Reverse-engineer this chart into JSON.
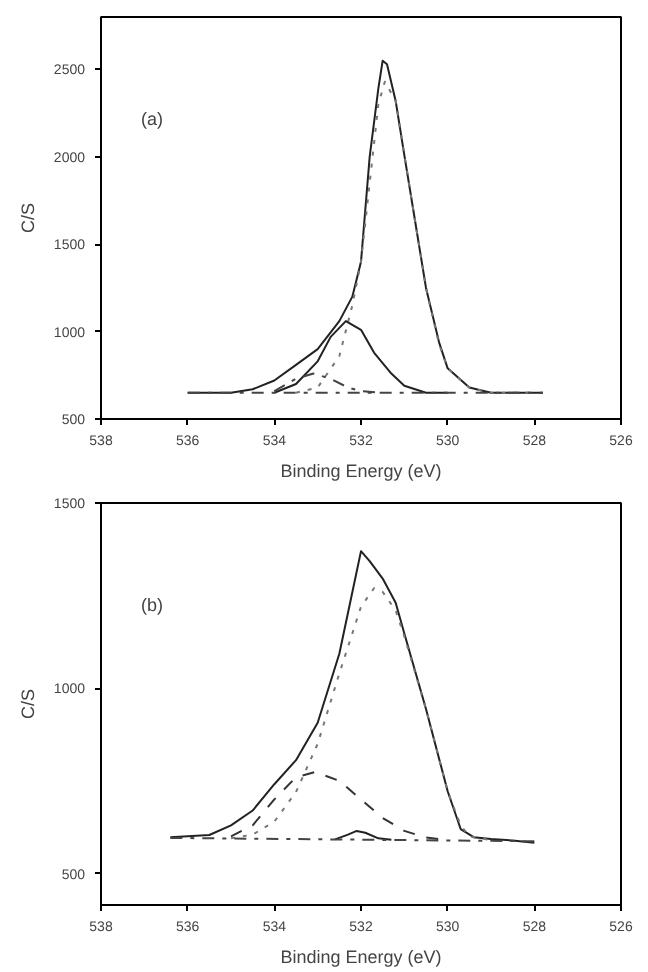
{
  "chart_data": [
    {
      "type": "line",
      "xlabel": "Binding Energy (eV)",
      "ylabel": "C/S",
      "annotations": [
        "(a)"
      ],
      "xlim": [
        538,
        526
      ],
      "ylim": [
        500,
        2800
      ],
      "xticks": [
        538,
        536,
        534,
        532,
        530,
        528,
        526
      ],
      "yticks": [
        500,
        1000,
        1500,
        2000,
        2500
      ],
      "grid": false,
      "series": [
        {
          "color": "#222222",
          "line_style": "solid",
          "x": [
            536,
            535,
            534.5,
            534,
            533.5,
            533,
            532.5,
            532.2,
            532,
            531.8,
            531.6,
            531.5,
            531.4,
            531.2,
            531,
            530.75,
            530.5,
            530.2,
            530,
            529.5,
            529,
            528.5,
            527.8
          ],
          "values": [
            650,
            650,
            670,
            720,
            810,
            900,
            1060,
            1200,
            1400,
            2000,
            2390,
            2550,
            2530,
            2320,
            2010,
            1630,
            1250,
            940,
            790,
            680,
            650,
            650,
            650
          ]
        },
        {
          "color": "#777777",
          "line_style": "dotted",
          "x": [
            533.5,
            533,
            532.5,
            532.2,
            532,
            531.8,
            531.6,
            531.45,
            531.2,
            531,
            530.75,
            530.5,
            530.2,
            530,
            529.5,
            529,
            528
          ],
          "values": [
            650,
            680,
            860,
            1150,
            1400,
            1850,
            2300,
            2430,
            2320,
            2010,
            1630,
            1250,
            930,
            790,
            680,
            650,
            650
          ]
        },
        {
          "color": "#222222",
          "line_style": "solid",
          "x": [
            534,
            533.5,
            533,
            532.7,
            532.35,
            532,
            531.7,
            531.3,
            531,
            530.5,
            530
          ],
          "values": [
            650,
            700,
            830,
            970,
            1060,
            1010,
            880,
            760,
            690,
            650,
            650
          ]
        },
        {
          "color": "#444444",
          "line_style": "dashdot",
          "x": [
            534,
            533.5,
            533.1,
            532.7,
            532.3,
            532,
            531.5
          ],
          "values": [
            660,
            730,
            760,
            730,
            680,
            660,
            650
          ]
        },
        {
          "color": "#444444",
          "line_style": "dashdot",
          "x": [
            536,
            527.8
          ],
          "values": [
            650,
            650
          ]
        }
      ]
    },
    {
      "type": "line",
      "xlabel": "Binding Energy (eV)",
      "ylabel": "C/S",
      "annotations": [
        "(b)"
      ],
      "xlim": [
        538,
        526
      ],
      "ylim": [
        415,
        1500
      ],
      "xticks": [
        538,
        536,
        534,
        532,
        530,
        528,
        526
      ],
      "yticks": [
        500,
        1000,
        1500
      ],
      "grid": false,
      "series": [
        {
          "color": "#222222",
          "line_style": "solid",
          "x": [
            536.4,
            535.5,
            535,
            534.5,
            534,
            533.5,
            533,
            532.5,
            532.2,
            532,
            531.8,
            531.5,
            531.2,
            531,
            530.5,
            530,
            529.7,
            529.4,
            529,
            528.5,
            528
          ],
          "values": [
            598,
            604,
            630,
            670,
            741,
            806,
            907,
            1093,
            1259,
            1370,
            1343,
            1296,
            1231,
            1148,
            944,
            722,
            620,
            598,
            593,
            589,
            583
          ]
        },
        {
          "color": "#777777",
          "line_style": "dotted",
          "x": [
            535,
            534.5,
            534,
            533.5,
            533,
            532.5,
            532,
            531.7,
            531.5,
            531.2,
            531,
            530.5,
            530,
            529.7,
            529.5,
            529
          ],
          "values": [
            595,
            605,
            640,
            720,
            850,
            1040,
            1220,
            1270,
            1260,
            1210,
            1140,
            944,
            722,
            630,
            600,
            590
          ]
        },
        {
          "color": "#333333",
          "line_style": "dashed",
          "x": [
            535,
            534.5,
            534,
            533.5,
            533.05,
            532.5,
            532,
            531.5,
            531,
            530.5,
            530
          ],
          "values": [
            600,
            630,
            700,
            760,
            774,
            750,
            700,
            650,
            615,
            597,
            590
          ]
        },
        {
          "color": "#222222",
          "line_style": "solid",
          "x": [
            532.6,
            532.3,
            532.1,
            531.9,
            531.6,
            531.3
          ],
          "values": [
            592,
            605,
            615,
            610,
            595,
            591
          ]
        },
        {
          "color": "#444444",
          "line_style": "dashdot",
          "x": [
            536.4,
            528
          ],
          "values": [
            596,
            587
          ]
        }
      ]
    }
  ]
}
